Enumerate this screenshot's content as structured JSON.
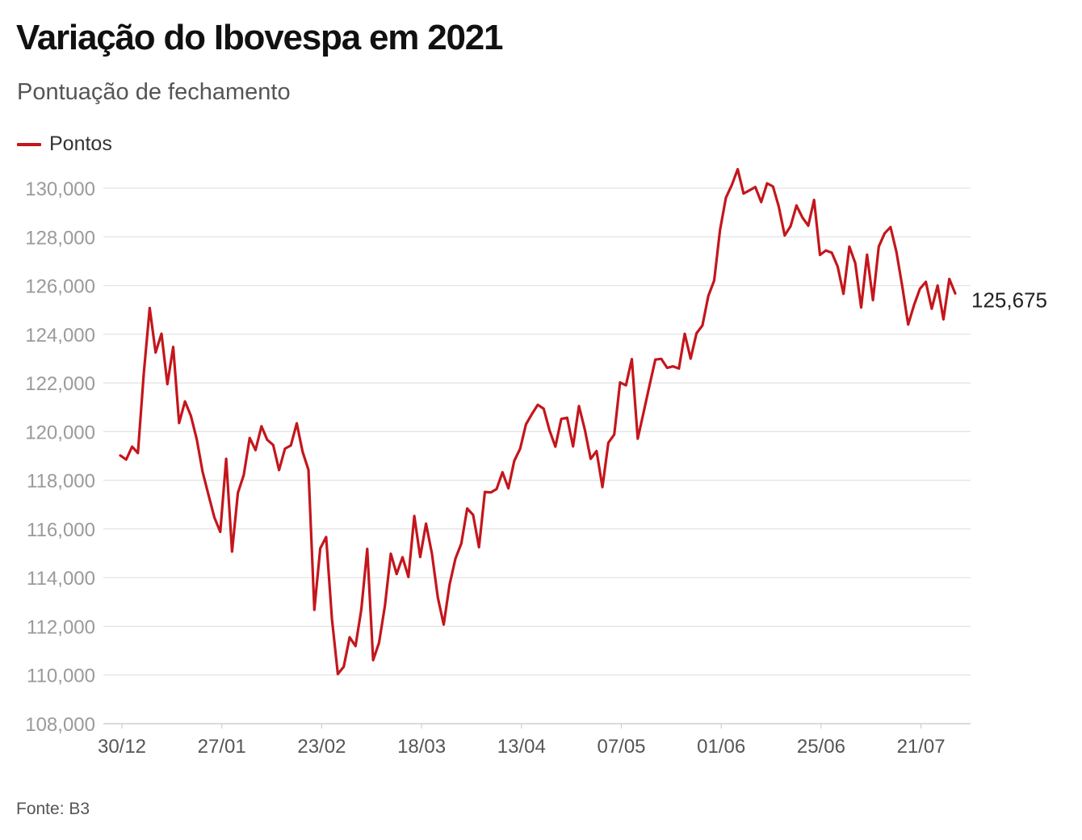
{
  "title": "Variação do Ibovespa em 2021",
  "subtitle": "Pontuação de fechamento",
  "source": "Fonte: B3",
  "colors": {
    "series": "#c4161c",
    "grid": "#e2e2e2",
    "tick_text": "#9a9a9a"
  },
  "chart_data": {
    "type": "line",
    "title": "Variação do Ibovespa em 2021",
    "subtitle": "Pontuação de fechamento",
    "ylim": [
      108000,
      130000
    ],
    "yticks": [
      108000,
      110000,
      112000,
      114000,
      116000,
      118000,
      120000,
      122000,
      124000,
      126000,
      128000,
      130000
    ],
    "ytick_labels": [
      "108,000",
      "110,000",
      "112,000",
      "114,000",
      "116,000",
      "118,000",
      "120,000",
      "122,000",
      "124,000",
      "126,000",
      "128,000",
      "130,000"
    ],
    "xtick_labels": [
      "30/12",
      "27/01",
      "23/02",
      "18/03",
      "13/04",
      "07/05",
      "01/06",
      "25/06",
      "21/07"
    ],
    "grid": true,
    "legend": "top-left",
    "end_label": "125,675",
    "series": [
      {
        "name": "Pontos",
        "values": [
          119020,
          118850,
          119380,
          119120,
          122400,
          125080,
          123250,
          124020,
          121950,
          123480,
          120350,
          121240,
          120650,
          119680,
          118350,
          117400,
          116470,
          115880,
          118880,
          115070,
          117480,
          118220,
          119740,
          119240,
          120220,
          119660,
          119450,
          118420,
          119300,
          119430,
          120340,
          119180,
          118430,
          112680,
          115200,
          115670,
          112300,
          110040,
          110340,
          111550,
          111190,
          112700,
          115180,
          110610,
          111320,
          112840,
          114980,
          114150,
          114840,
          114030,
          116530,
          114850,
          116220,
          114990,
          113190,
          112070,
          113720,
          114790,
          115400,
          116840,
          116580,
          115250,
          117520,
          117500,
          117640,
          118330,
          117670,
          118800,
          119300,
          120300,
          120720,
          121100,
          120940,
          120050,
          119380,
          120520,
          120570,
          119390,
          121050,
          120080,
          118880,
          119200,
          117720,
          119540,
          119880,
          122020,
          121900,
          122980,
          119710,
          120800,
          121900,
          122960,
          122990,
          122620,
          122680,
          122590,
          124020,
          123000,
          124040,
          124360,
          125570,
          126210,
          128280,
          129610,
          130130,
          130780,
          129780,
          129910,
          130050,
          129430,
          130200,
          130070,
          129240,
          128060,
          128440,
          129290,
          128800,
          128460,
          129520,
          127260,
          127440,
          127350,
          126780,
          125660,
          127600,
          126920,
          125100,
          127270,
          125400,
          127600,
          128150,
          128400,
          127380,
          125950,
          124400,
          125200,
          125870,
          126150,
          125050,
          126000,
          124610,
          126270,
          125675
        ]
      }
    ]
  }
}
